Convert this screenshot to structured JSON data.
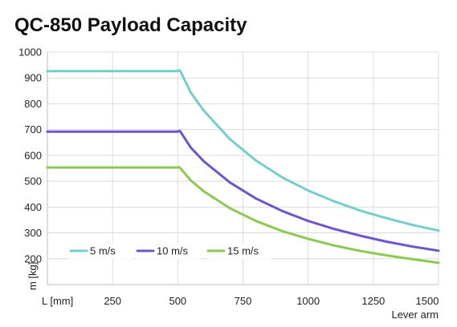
{
  "chart_data": {
    "type": "line",
    "title": "QC-850 Payload Capacity",
    "xlabel": "Lever arm",
    "ylabel": "m [kg]",
    "x_unit_label": "L [mm]",
    "xlim": [
      0,
      1500
    ],
    "ylim": [
      100,
      1000
    ],
    "xticks": [
      250,
      500,
      750,
      1000,
      1250,
      1500
    ],
    "yticks": [
      200,
      300,
      400,
      500,
      600,
      700,
      800,
      900,
      1000
    ],
    "grid": true,
    "legend_position": "bottom-left",
    "series": [
      {
        "name": "5 m/s",
        "color": "#74cfc9",
        "x": [
          0,
          500,
          505,
          510,
          550,
          600,
          700,
          800,
          900,
          1000,
          1100,
          1200,
          1300,
          1400,
          1500
        ],
        "values": [
          926,
          926,
          930,
          926,
          843,
          773,
          663,
          580,
          515,
          464,
          422,
          386,
          357,
          331,
          309
        ]
      },
      {
        "name": "10 m/s",
        "color": "#6f55cc",
        "x": [
          0,
          500,
          505,
          510,
          550,
          600,
          700,
          800,
          900,
          1000,
          1100,
          1200,
          1300,
          1400,
          1500
        ],
        "values": [
          692,
          692,
          695,
          692,
          630,
          577,
          495,
          433,
          385,
          346,
          315,
          289,
          266,
          247,
          231
        ]
      },
      {
        "name": "15 m/s",
        "color": "#8bc950",
        "x": [
          0,
          500,
          505,
          510,
          550,
          600,
          700,
          800,
          900,
          1000,
          1100,
          1200,
          1300,
          1400,
          1500
        ],
        "values": [
          553,
          553,
          555,
          550,
          503,
          461,
          395,
          346,
          307,
          277,
          251,
          230,
          213,
          198,
          184
        ]
      }
    ]
  }
}
